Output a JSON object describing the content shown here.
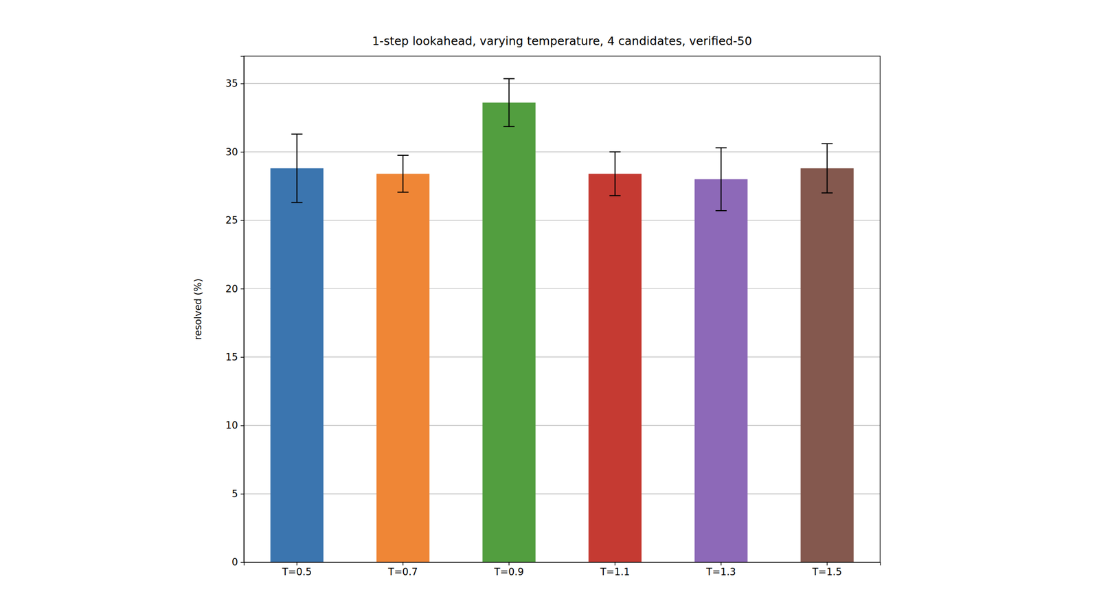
{
  "chart_data": {
    "type": "bar",
    "title": "1-step lookahead, varying temperature, 4 candidates, verified-50",
    "y_label": "resolved (%)",
    "categories": [
      "T=0.5",
      "T=0.7",
      "T=0.9",
      "T=1.1",
      "T=1.3",
      "T=1.5"
    ],
    "values": [
      28.8,
      28.4,
      33.6,
      28.4,
      28.0,
      28.8
    ],
    "errors": [
      2.5,
      1.35,
      1.75,
      1.6,
      2.3,
      1.8
    ],
    "colors": [
      "#3b75af",
      "#ef8636",
      "#529e3f",
      "#c53a32",
      "#8d69b8",
      "#84584e"
    ],
    "ylim": [
      0,
      37
    ],
    "yticks": [
      0,
      5,
      10,
      15,
      20,
      25,
      30,
      35
    ],
    "grid": true
  }
}
